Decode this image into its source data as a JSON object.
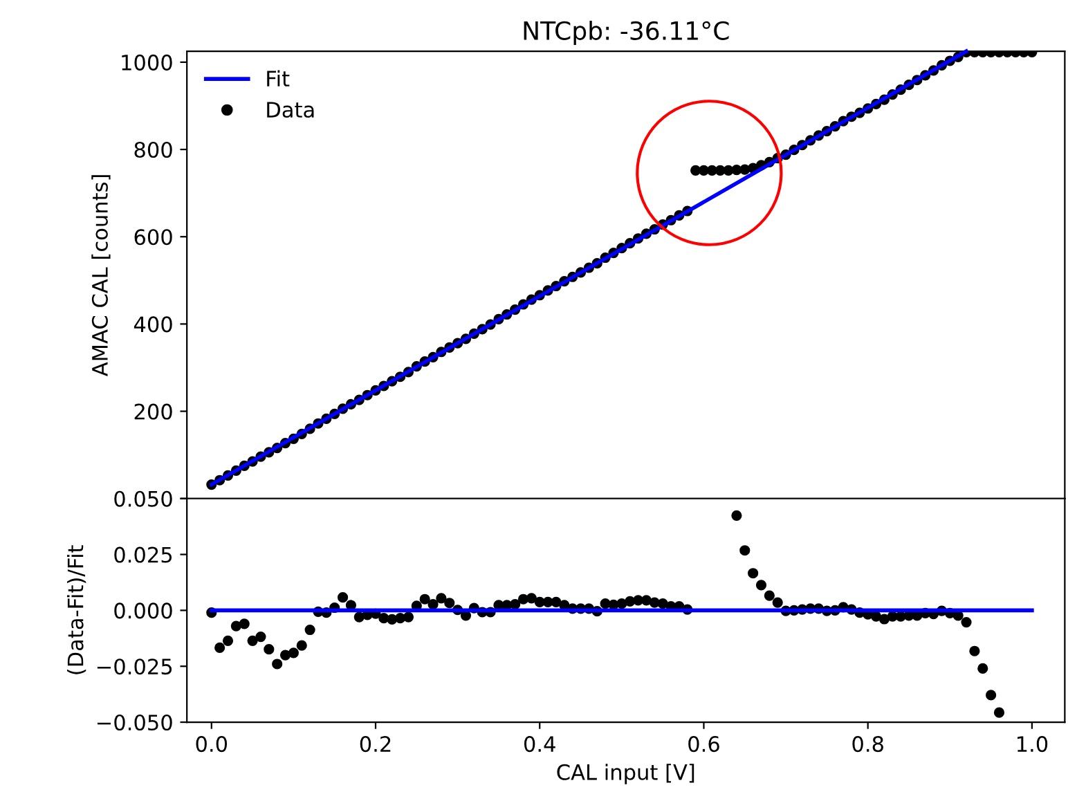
{
  "chart_data": [
    {
      "type": "scatter",
      "title": "NTCpb: -36.11°C",
      "ylabel": "AMAC CAL [counts]",
      "x": [
        0,
        0.01,
        0.02,
        0.03,
        0.04,
        0.05,
        0.06,
        0.07,
        0.08,
        0.09,
        0.1,
        0.11,
        0.12,
        0.13,
        0.14,
        0.15,
        0.16,
        0.17,
        0.18,
        0.19,
        0.2,
        0.21,
        0.22,
        0.23,
        0.24,
        0.25,
        0.26,
        0.27,
        0.28,
        0.29,
        0.3,
        0.31,
        0.32,
        0.33,
        0.34,
        0.35,
        0.36,
        0.37,
        0.38,
        0.39,
        0.4,
        0.41,
        0.42,
        0.43,
        0.44,
        0.45,
        0.46,
        0.47,
        0.48,
        0.49,
        0.5,
        0.51,
        0.52,
        0.53,
        0.54,
        0.55,
        0.56,
        0.57,
        0.58,
        0.59,
        0.6,
        0.61,
        0.62,
        0.63,
        0.64,
        0.65,
        0.66,
        0.67,
        0.68,
        0.69,
        0.7,
        0.71,
        0.72,
        0.73,
        0.74,
        0.75,
        0.76,
        0.77,
        0.78,
        0.79,
        0.8,
        0.81,
        0.82,
        0.83,
        0.84,
        0.85,
        0.86,
        0.87,
        0.88,
        0.89,
        0.9,
        0.91,
        0.92,
        0.93,
        0.94,
        0.95,
        0.96,
        0.97,
        0.98,
        0.99,
        1.0
      ],
      "series": [
        {
          "name": "Fit",
          "type": "line",
          "color": "#0000ff",
          "x": [
            0,
            0.92
          ],
          "values": [
            32,
            1025
          ],
          "marker": "none"
        },
        {
          "name": "Data",
          "type": "scatter",
          "color": "#000000",
          "marker": "circle",
          "values": [
            32,
            42,
            53,
            64,
            75,
            85,
            96,
            106,
            116,
            127,
            137,
            148,
            160,
            172,
            183,
            194,
            206,
            216,
            226,
            237,
            248,
            258,
            269,
            279,
            290,
            303,
            314,
            324,
            336,
            346,
            356,
            366,
            378,
            388,
            399,
            411,
            422,
            433,
            445,
            456,
            466,
            477,
            487,
            498,
            508,
            518,
            529,
            539,
            552,
            563,
            574,
            585,
            596,
            607,
            617,
            628,
            638,
            649,
            659,
            752,
            752,
            752,
            752,
            752,
            753,
            754,
            757,
            764,
            771,
            780,
            788,
            799,
            810,
            821,
            832,
            842,
            853,
            865,
            875,
            884,
            894,
            904,
            914,
            926,
            937,
            948,
            959,
            970,
            981,
            993,
            1003,
            1012,
            1023,
            1023,
            1023,
            1023,
            1023,
            1023,
            1023,
            1023,
            1023
          ]
        }
      ],
      "xlim": [
        -0.03,
        1.04
      ],
      "xticks": [
        {
          "value": 0.0,
          "label": null
        },
        {
          "value": 0.2,
          "label": null
        },
        {
          "value": 0.4,
          "label": null
        },
        {
          "value": 0.6,
          "label": null
        },
        {
          "value": 0.8,
          "label": null
        },
        {
          "value": 1.0,
          "label": null
        }
      ],
      "ylim": [
        0,
        1025
      ],
      "yticks": [
        {
          "value": 0,
          "label": null
        },
        200,
        400,
        600,
        800,
        1000
      ],
      "tick_labels": "y",
      "legend": "top left",
      "grid": false
    },
    {
      "type": "scatter",
      "ylabel": "(Data-Fit)/Fit",
      "xlabel": "CAL input [V]",
      "x": [
        0,
        0.01,
        0.02,
        0.03,
        0.04,
        0.05,
        0.06,
        0.07,
        0.08,
        0.09,
        0.1,
        0.11,
        0.12,
        0.13,
        0.14,
        0.15,
        0.16,
        0.17,
        0.18,
        0.19,
        0.2,
        0.21,
        0.22,
        0.23,
        0.24,
        0.25,
        0.26,
        0.27,
        0.28,
        0.29,
        0.3,
        0.31,
        0.32,
        0.33,
        0.34,
        0.35,
        0.36,
        0.37,
        0.38,
        0.39,
        0.4,
        0.41,
        0.42,
        0.43,
        0.44,
        0.45,
        0.46,
        0.47,
        0.48,
        0.49,
        0.5,
        0.51,
        0.52,
        0.53,
        0.54,
        0.55,
        0.56,
        0.57,
        0.58,
        0.59,
        0.6,
        0.61,
        0.62,
        0.63,
        0.64,
        0.65,
        0.66,
        0.67,
        0.68,
        0.69,
        0.7,
        0.71,
        0.72,
        0.73,
        0.74,
        0.75,
        0.76,
        0.77,
        0.78,
        0.79,
        0.8,
        0.81,
        0.82,
        0.83,
        0.84,
        0.85,
        0.86,
        0.87,
        0.88,
        0.89,
        0.9,
        0.91,
        0.92,
        0.93,
        0.94,
        0.95,
        0.96
      ],
      "series": [
        {
          "type": "line",
          "color": "#0000ff",
          "x": [
            0,
            1.0
          ],
          "values": [
            0,
            0
          ],
          "marker": "none"
        },
        {
          "type": "scatter",
          "color": "#000000",
          "marker": "circle",
          "values": [
            -0.001,
            -0.0167,
            -0.0136,
            -0.007,
            -0.006,
            -0.0136,
            -0.0118,
            -0.0174,
            -0.024,
            -0.02,
            -0.019,
            -0.0157,
            -0.0087,
            -0.0006,
            -0.001,
            0.0012,
            0.0058,
            0.0023,
            -0.003,
            -0.002,
            -0.0015,
            -0.0035,
            -0.004,
            -0.0035,
            -0.003,
            0.002,
            0.005,
            0.0027,
            0.0054,
            0.0033,
            0.0002,
            -0.0023,
            0.001,
            -0.0008,
            -0.0008,
            0.0023,
            0.0023,
            0.0027,
            0.005,
            0.0054,
            0.0037,
            0.0037,
            0.0037,
            0.0023,
            0.0008,
            0.0008,
            0.0008,
            -0.0004,
            0.003,
            0.0025,
            0.003,
            0.004,
            0.0045,
            0.0045,
            0.0035,
            0.003,
            0.0018,
            0.0018,
            0.0004,
            null,
            null,
            null,
            null,
            null,
            0.0424,
            0.0268,
            0.0166,
            0.0113,
            0.0066,
            0.0035,
            -0.0002,
            0,
            0.0004,
            0.0008,
            0.0008,
            -0.0002,
            0,
            0.0014,
            0.0004,
            -0.001,
            -0.0018,
            -0.0027,
            -0.0039,
            -0.0027,
            -0.0027,
            -0.0023,
            -0.0023,
            -0.0012,
            -0.0016,
            -0.0002,
            -0.0012,
            -0.0023,
            -0.0053,
            -0.0182,
            -0.026,
            -0.0379,
            -0.0457
          ]
        }
      ],
      "xlim": [
        -0.03,
        1.04
      ],
      "xticks": [
        {
          "value": 0.0,
          "label": "0.0"
        },
        {
          "value": 0.2,
          "label": "0.2"
        },
        {
          "value": 0.4,
          "label": "0.4"
        },
        {
          "value": 0.6,
          "label": "0.6"
        },
        {
          "value": 0.8,
          "label": "0.8"
        },
        {
          "value": 1.0,
          "label": "1.0"
        }
      ],
      "ylim": [
        -0.05,
        0.05
      ],
      "yticks": [
        {
          "value": -0.05,
          "label": "−0.050"
        },
        {
          "value": -0.025,
          "label": "−0.025"
        },
        {
          "value": 0.0,
          "label": "0.000"
        },
        {
          "value": 0.025,
          "label": "0.025"
        },
        {
          "value": 0.05,
          "label": "0.050"
        }
      ],
      "grid": false
    }
  ]
}
